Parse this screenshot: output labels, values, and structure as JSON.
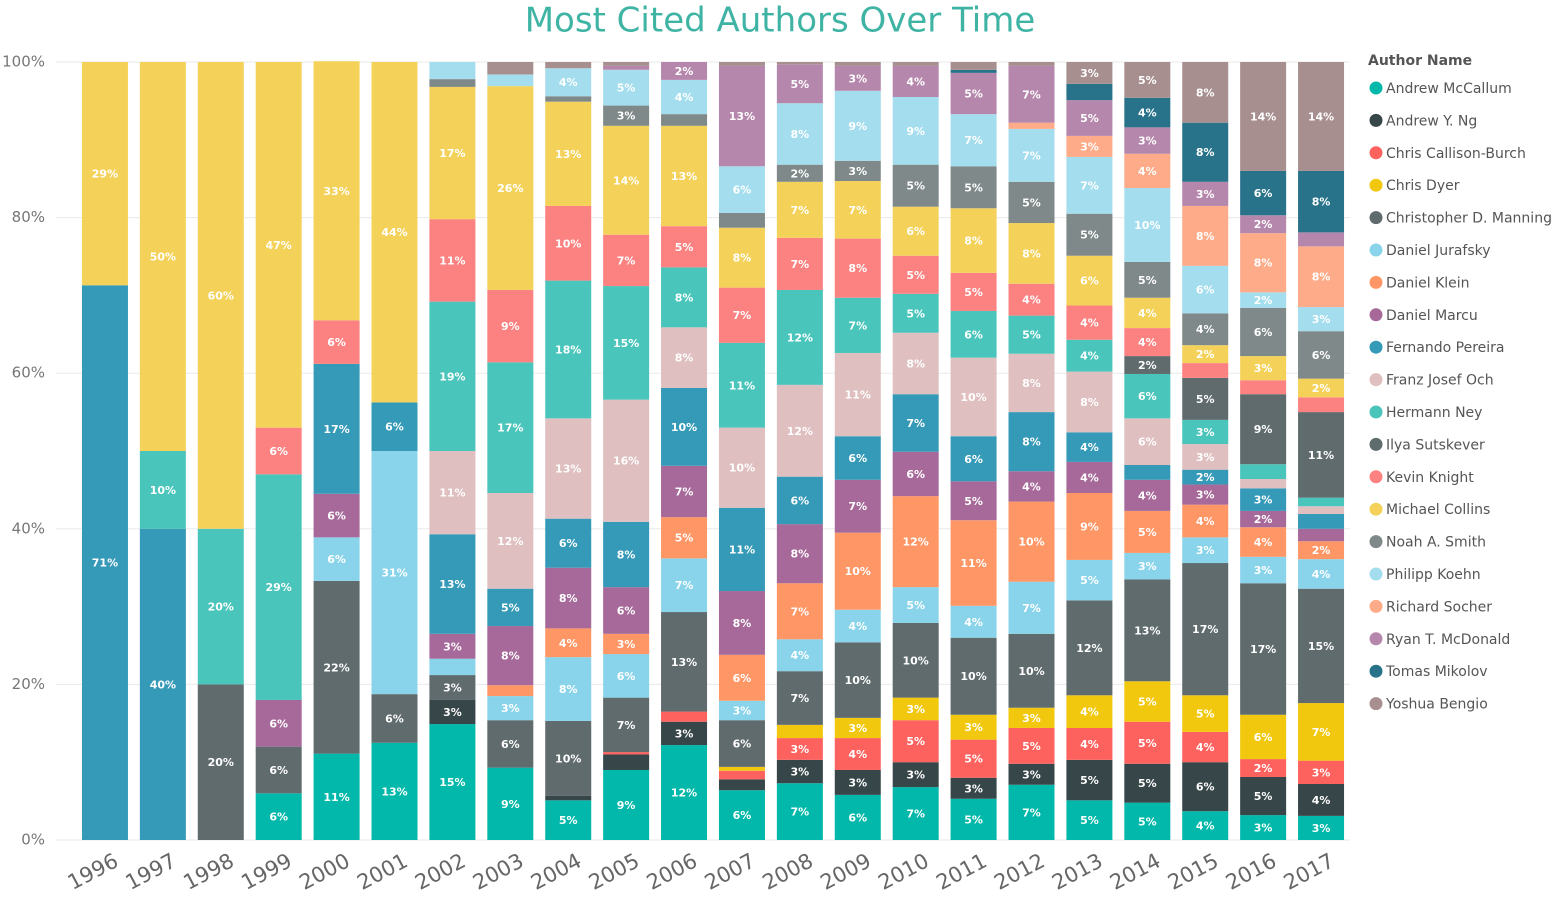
{
  "chart_data": {
    "type": "stacked_bar_100",
    "title": "Most Cited Authors Over Time",
    "legend_title": "Author Name",
    "legend_position": "right",
    "grid": true,
    "categories": [
      "1996",
      "1997",
      "1998",
      "1999",
      "2000",
      "2001",
      "2002",
      "2003",
      "2004",
      "2005",
      "2006",
      "2007",
      "2008",
      "2009",
      "2010",
      "2011",
      "2012",
      "2013",
      "2014",
      "2015",
      "2016",
      "2017"
    ],
    "ylim": [
      0,
      100
    ],
    "yticks": [
      {
        "value": 0,
        "label": "0%"
      },
      {
        "value": 20,
        "label": "20%"
      },
      {
        "value": 40,
        "label": "40%"
      },
      {
        "value": 60,
        "label": "60%"
      },
      {
        "value": 80,
        "label": "80%"
      },
      {
        "value": 100,
        "label": "100%"
      }
    ],
    "series": [
      {
        "name": "Andrew McCallum",
        "color": "#01B8AA",
        "values": [
          null,
          null,
          null,
          6,
          11.1,
          12.5,
          14.9,
          9.3,
          5.1,
          9,
          12.2,
          6.4,
          7.3,
          5.8,
          6.8,
          5.3,
          7.1,
          5.1,
          4.8,
          3.7,
          3.2,
          3.1
        ],
        "value_labels": [
          null,
          null,
          null,
          "6%",
          "11%",
          "13%",
          "15%",
          "9%",
          "5%",
          "9%",
          "12%",
          "6%",
          "7%",
          "6%",
          "7%",
          "5%",
          "7%",
          "5%",
          "5%",
          "4%",
          "3%",
          "3%"
        ]
      },
      {
        "name": "Andrew Y. Ng",
        "color": "#374649",
        "values": [
          null,
          null,
          null,
          null,
          null,
          null,
          3.1,
          null,
          0.6,
          2,
          3,
          1.4,
          3,
          3.2,
          3.2,
          2.7,
          2.7,
          5.2,
          5,
          6.3,
          4.9,
          4.1
        ],
        "value_labels": [
          null,
          null,
          null,
          null,
          null,
          null,
          "3%",
          null,
          null,
          null,
          "3%",
          null,
          "3%",
          "3%",
          "3%",
          "3%",
          "3%",
          "5%",
          "5%",
          "6%",
          "5%",
          "4%"
        ]
      },
      {
        "name": "Chris Callison-Burch",
        "color": "#FD625E",
        "values": [
          null,
          null,
          null,
          null,
          null,
          null,
          null,
          null,
          null,
          0.3,
          1.3,
          1.1,
          2.8,
          4.1,
          5.4,
          4.9,
          4.6,
          4.1,
          5.4,
          3.9,
          2.3,
          3
        ],
        "value_labels": [
          null,
          null,
          null,
          null,
          null,
          null,
          null,
          null,
          null,
          null,
          null,
          null,
          "3%",
          "4%",
          "5%",
          "5%",
          "5%",
          "4%",
          "5%",
          "4%",
          "2%",
          "3%"
        ]
      },
      {
        "name": "Chris Dyer",
        "color": "#F2C80F",
        "values": [
          null,
          null,
          null,
          null,
          null,
          null,
          null,
          null,
          null,
          null,
          null,
          0.5,
          1.7,
          2.6,
          2.9,
          3.2,
          2.6,
          4.2,
          5.2,
          4.7,
          5.7,
          7.4
        ],
        "value_labels": [
          null,
          null,
          null,
          null,
          null,
          null,
          null,
          null,
          null,
          null,
          null,
          null,
          null,
          "3%",
          "3%",
          "3%",
          "3%",
          "4%",
          "5%",
          "5%",
          "6%",
          "7%"
        ]
      },
      {
        "name": "Christopher D. Manning",
        "color": "#5F6B6D",
        "values": [
          null,
          null,
          20,
          6,
          22.2,
          6.25,
          3.2,
          6.1,
          9.6,
          7,
          12.8,
          6,
          6.9,
          9.7,
          9.6,
          9.9,
          9.5,
          12.2,
          13.1,
          17,
          16.9,
          14.7
        ],
        "value_labels": [
          null,
          null,
          "20%",
          "6%",
          "22%",
          "6%",
          "3%",
          "6%",
          "10%",
          "7%",
          "13%",
          "6%",
          "7%",
          "10%",
          "10%",
          "10%",
          "10%",
          "12%",
          "13%",
          "17%",
          "17%",
          "15%"
        ]
      },
      {
        "name": "Daniel Jurafsky",
        "color": "#8AD4EB",
        "values": [
          null,
          null,
          null,
          null,
          5.6,
          31.25,
          2.1,
          3.1,
          8.2,
          5.6,
          6.9,
          2.5,
          4.1,
          4.2,
          4.6,
          4.1,
          6.7,
          5.2,
          3.4,
          3.3,
          3.4,
          3.8
        ],
        "value_labels": [
          null,
          null,
          null,
          null,
          "6%",
          "31%",
          null,
          "3%",
          "8%",
          "6%",
          "7%",
          "3%",
          "4%",
          "4%",
          "5%",
          "4%",
          "7%",
          "5%",
          "3%",
          "3%",
          "3%",
          "4%"
        ]
      },
      {
        "name": "Daniel Klein",
        "color": "#FE9666",
        "values": [
          null,
          null,
          null,
          null,
          null,
          null,
          null,
          1.4,
          3.7,
          2.6,
          5.3,
          5.9,
          7.2,
          9.9,
          11.7,
          11,
          10.3,
          8.6,
          5.4,
          4.2,
          3.8,
          2.3
        ],
        "value_labels": [
          null,
          null,
          null,
          null,
          null,
          null,
          null,
          null,
          "4%",
          "3%",
          "5%",
          "6%",
          "7%",
          "10%",
          "12%",
          "11%",
          "10%",
          "9%",
          "5%",
          "4%",
          "4%",
          "2%"
        ]
      },
      {
        "name": "Daniel Marcu",
        "color": "#A66999",
        "values": [
          null,
          null,
          null,
          6,
          5.6,
          null,
          3.2,
          7.6,
          7.8,
          6,
          6.6,
          8.2,
          7.6,
          6.8,
          5.7,
          5,
          3.9,
          4,
          4,
          2.6,
          2.1,
          1.6
        ],
        "value_labels": [
          null,
          null,
          null,
          "6%",
          "6%",
          null,
          "3%",
          "8%",
          "8%",
          "6%",
          "7%",
          "8%",
          "8%",
          "7%",
          "6%",
          "5%",
          "4%",
          "4%",
          "4%",
          "3%",
          "2%",
          null
        ]
      },
      {
        "name": "Fernando Pereira",
        "color": "#3599B8",
        "values": [
          71.3,
          40,
          null,
          null,
          16.7,
          6.25,
          12.8,
          4.8,
          6.3,
          8.4,
          10,
          10.7,
          6.1,
          5.6,
          7.4,
          5.8,
          7.6,
          3.8,
          1.9,
          1.9,
          2.9,
          1.9
        ],
        "value_labels": [
          "71%",
          "40%",
          null,
          null,
          "17%",
          "6%",
          "13%",
          "5%",
          "6%",
          "8%",
          "10%",
          "11%",
          "6%",
          "6%",
          "7%",
          "6%",
          "8%",
          "4%",
          null,
          "2%",
          "3%",
          null
        ]
      },
      {
        "name": "Franz Josef Och",
        "color": "#DFBFBF",
        "values": [
          null,
          null,
          null,
          null,
          null,
          null,
          10.7,
          12.3,
          12.9,
          15.7,
          7.8,
          10.3,
          11.8,
          10.7,
          7.9,
          10.1,
          7.5,
          7.8,
          6,
          3.3,
          1.2,
          1
        ],
        "value_labels": [
          null,
          null,
          null,
          null,
          null,
          null,
          "11%",
          "12%",
          "13%",
          "16%",
          "8%",
          "10%",
          "12%",
          "11%",
          "8%",
          "10%",
          "8%",
          "8%",
          "6%",
          "3%",
          null,
          null
        ]
      },
      {
        "name": "Hermann Ney",
        "color": "#4AC5BB",
        "values": [
          null,
          10,
          20,
          29,
          null,
          null,
          19.2,
          16.8,
          17.7,
          14.6,
          7.7,
          10.9,
          12.2,
          7.1,
          5,
          6,
          4.9,
          4.1,
          5.7,
          3.1,
          1.9,
          1.1
        ],
        "value_labels": [
          null,
          "10%",
          "20%",
          "29%",
          null,
          null,
          "19%",
          "17%",
          "18%",
          "15%",
          "8%",
          "11%",
          "12%",
          "7%",
          "5%",
          "6%",
          "5%",
          "4%",
          "6%",
          "3%",
          null,
          null
        ]
      },
      {
        "name": "Ilya Sutskever",
        "color": "#5F6B6D",
        "values": [
          null,
          null,
          null,
          null,
          null,
          null,
          null,
          null,
          null,
          null,
          null,
          null,
          null,
          null,
          null,
          null,
          null,
          null,
          2.3,
          5.4,
          9,
          11
        ],
        "value_labels": [
          null,
          null,
          null,
          null,
          null,
          null,
          null,
          null,
          null,
          null,
          null,
          null,
          null,
          null,
          null,
          null,
          null,
          null,
          "2%",
          "5%",
          "9%",
          "11%"
        ]
      },
      {
        "name": "Kevin Knight",
        "color": "#FB8281",
        "values": [
          null,
          null,
          null,
          6,
          5.6,
          null,
          10.6,
          9.3,
          9.6,
          6.6,
          5.3,
          7.1,
          6.7,
          7.6,
          4.9,
          4.9,
          4.1,
          4.4,
          3.6,
          1.9,
          1.8,
          1.9
        ],
        "value_labels": [
          null,
          null,
          null,
          "6%",
          "6%",
          null,
          "11%",
          "9%",
          "10%",
          "7%",
          "5%",
          "7%",
          "7%",
          "8%",
          "5%",
          "5%",
          "4%",
          "4%",
          "4%",
          null,
          null,
          null
        ]
      },
      {
        "name": "Michael Collins",
        "color": "#F4D25A",
        "values": [
          28.7,
          50,
          60,
          47,
          33.3,
          43.75,
          17,
          26.2,
          13.4,
          14,
          12.9,
          7.7,
          7.2,
          7.4,
          6.3,
          8.3,
          7.8,
          6.4,
          3.9,
          2.3,
          3.1,
          2.4
        ],
        "value_labels": [
          "29%",
          "50%",
          "60%",
          "47%",
          "33%",
          "44%",
          "17%",
          "26%",
          "13%",
          "14%",
          "13%",
          "8%",
          "7%",
          "7%",
          "6%",
          "8%",
          "8%",
          "6%",
          "4%",
          "2%",
          "3%",
          "2%"
        ]
      },
      {
        "name": "Noah A. Smith",
        "color": "#7F898A",
        "values": [
          null,
          null,
          null,
          null,
          null,
          null,
          1,
          null,
          0.7,
          2.6,
          1.5,
          1.9,
          2.2,
          2.6,
          5.4,
          5.4,
          5.3,
          5.4,
          4.6,
          4.1,
          6.2,
          6.1
        ],
        "value_labels": [
          null,
          null,
          null,
          null,
          null,
          null,
          null,
          null,
          null,
          "3%",
          null,
          null,
          "2%",
          "3%",
          "5%",
          "5%",
          "5%",
          "5%",
          "5%",
          "4%",
          "6%",
          "6%"
        ]
      },
      {
        "name": "Philipp Koehn",
        "color": "#A4DDEE",
        "values": [
          null,
          null,
          null,
          null,
          null,
          null,
          2.2,
          1.5,
          3.6,
          4.6,
          4.4,
          6,
          7.9,
          9,
          8.7,
          6.7,
          6.8,
          7.3,
          9.5,
          6.1,
          2,
          3.1
        ],
        "value_labels": [
          null,
          null,
          null,
          null,
          null,
          null,
          null,
          null,
          "4%",
          "5%",
          "4%",
          "6%",
          "8%",
          "9%",
          "9%",
          "7%",
          "7%",
          "7%",
          "10%",
          "6%",
          "2%",
          "3%"
        ]
      },
      {
        "name": "Richard Socher",
        "color": "#FDAB89",
        "values": [
          null,
          null,
          null,
          null,
          null,
          null,
          null,
          null,
          null,
          null,
          null,
          null,
          null,
          null,
          null,
          null,
          0.8,
          2.7,
          4.4,
          7.7,
          7.6,
          7.8
        ],
        "value_labels": [
          null,
          null,
          null,
          null,
          null,
          null,
          null,
          null,
          null,
          null,
          null,
          null,
          null,
          null,
          null,
          null,
          null,
          "3%",
          "4%",
          "8%",
          "8%",
          "8%"
        ]
      },
      {
        "name": "Ryan T. McDonald",
        "color": "#B687AC",
        "values": [
          null,
          null,
          null,
          null,
          null,
          null,
          null,
          null,
          null,
          0.5,
          2.3,
          12.9,
          5,
          3.2,
          4,
          5.3,
          7.3,
          4.6,
          3.4,
          3.1,
          2.3,
          1.8
        ],
        "value_labels": [
          null,
          null,
          null,
          null,
          null,
          null,
          null,
          null,
          null,
          null,
          "2%",
          "13%",
          "5%",
          "3%",
          "4%",
          "5%",
          "7%",
          "5%",
          "3%",
          "3%",
          "2%",
          null
        ]
      },
      {
        "name": "Tomas Mikolov",
        "color": "#28738A",
        "values": [
          null,
          null,
          null,
          null,
          null,
          null,
          null,
          null,
          null,
          null,
          null,
          null,
          null,
          null,
          null,
          0.4,
          null,
          2.1,
          3.8,
          7.6,
          5.7,
          7.9
        ],
        "value_labels": [
          null,
          null,
          null,
          null,
          null,
          null,
          null,
          null,
          null,
          null,
          null,
          null,
          null,
          null,
          null,
          null,
          null,
          null,
          "4%",
          "8%",
          "6%",
          "8%"
        ]
      },
      {
        "name": "Yoshua Bengio",
        "color": "#A78F8F",
        "values": [
          null,
          null,
          null,
          null,
          null,
          null,
          null,
          1.6,
          0.8,
          0.5,
          null,
          0.5,
          0.3,
          0.5,
          0.5,
          1,
          0.5,
          2.8,
          4.6,
          7.8,
          14,
          14
        ],
        "value_labels": [
          null,
          null,
          null,
          null,
          null,
          null,
          null,
          null,
          null,
          null,
          null,
          null,
          null,
          null,
          null,
          null,
          null,
          "3%",
          "5%",
          "8%",
          "14%",
          "14%"
        ]
      }
    ]
  }
}
